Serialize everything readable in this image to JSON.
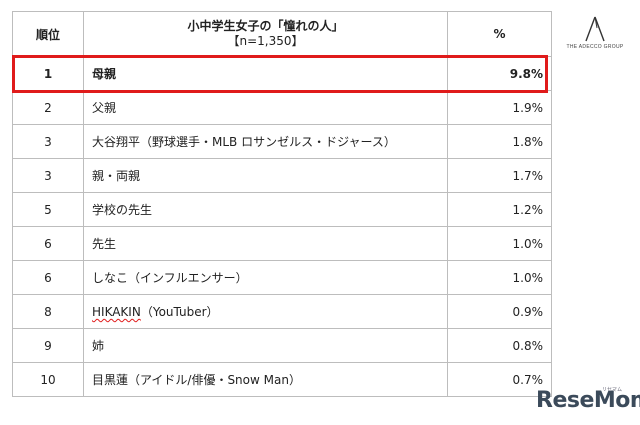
{
  "table": {
    "headers": {
      "rank": "順位",
      "title": "小中学生女子の「憧れの人」",
      "n": "【n=1,350】",
      "pct": "%"
    },
    "rows": [
      {
        "rank": "1",
        "name": "母親",
        "pct": "9.8%"
      },
      {
        "rank": "2",
        "name": "父親",
        "pct": "1.9%"
      },
      {
        "rank": "3",
        "name": "大谷翔平（野球選手・MLB ロサンゼルス・ドジャース）",
        "pct": "1.8%"
      },
      {
        "rank": "3",
        "name": "親・両親",
        "pct": "1.7%"
      },
      {
        "rank": "5",
        "name": "学校の先生",
        "pct": "1.2%"
      },
      {
        "rank": "6",
        "name": "先生",
        "pct": "1.0%"
      },
      {
        "rank": "6",
        "name": "しなこ（インフルエンサー）",
        "pct": "1.0%"
      },
      {
        "rank": "8",
        "name_main": "HIKAKIN",
        "name_rest": "（YouTuber）",
        "pct": "0.9%"
      },
      {
        "rank": "9",
        "name": "姉",
        "pct": "0.8%"
      },
      {
        "rank": "10",
        "name": "目黒蓮（アイドル/俳優・Snow Man）",
        "pct": "0.7%"
      }
    ]
  },
  "logo": {
    "text": "THE ADECCO GROUP"
  },
  "watermark": {
    "text": "ReseMom",
    "sub": "リセマム"
  },
  "colors": {
    "highlight": "#e01b1b",
    "border": "#bdbdbd"
  }
}
